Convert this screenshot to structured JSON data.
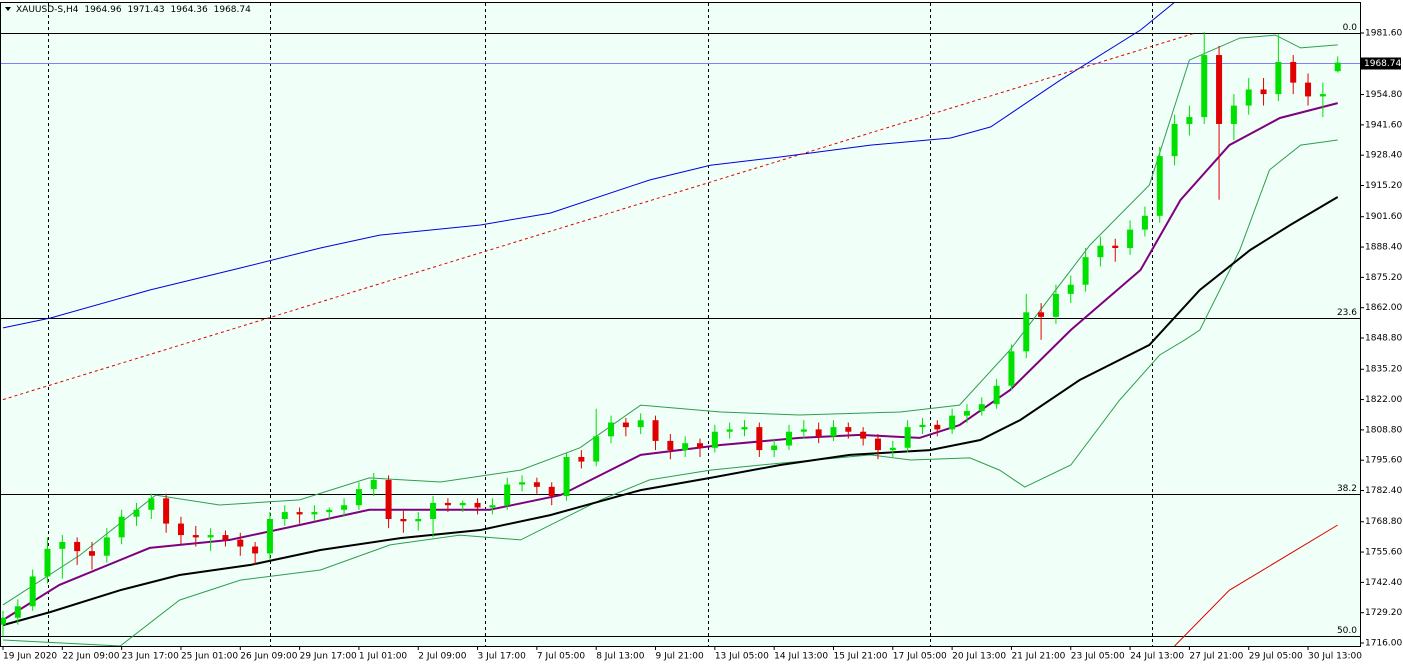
{
  "chart_data": {
    "type": "candlestick",
    "symbol": "XAUUSD-S,H4",
    "last_ohlc": [
      1964.96,
      1971.43,
      1964.36,
      1968.74
    ],
    "current_price": 1968.74,
    "current_price_color": "#8080ff",
    "up_color": "#00e000",
    "down_color": "#e00000",
    "background": "#f0fff8",
    "ylim": [
      1714.7,
      1995.1
    ],
    "yticks": [
      {
        "value": 1981.6,
        "label": "1981.60"
      },
      {
        "value": 1954.8,
        "label": "1954.80"
      },
      {
        "value": 1941.6,
        "label": "1941.60"
      },
      {
        "value": 1928.4,
        "label": "1928.40"
      },
      {
        "value": 1915.2,
        "label": "1915.20"
      },
      {
        "value": 1901.6,
        "label": "1901.60"
      },
      {
        "value": 1888.4,
        "label": "1888.40"
      },
      {
        "value": 1875.2,
        "label": "1875.20"
      },
      {
        "value": 1862.0,
        "label": "1862.00"
      },
      {
        "value": 1848.8,
        "label": "1848.80"
      },
      {
        "value": 1835.2,
        "label": "1835.20"
      },
      {
        "value": 1822.0,
        "label": "1822.00"
      },
      {
        "value": 1808.8,
        "label": "1808.80"
      },
      {
        "value": 1795.6,
        "label": "1795.60"
      },
      {
        "value": 1782.4,
        "label": "1782.40"
      },
      {
        "value": 1768.8,
        "label": "1768.80"
      },
      {
        "value": 1755.6,
        "label": "1755.60"
      },
      {
        "value": 1742.4,
        "label": "1742.40"
      },
      {
        "value": 1729.2,
        "label": "1729.20"
      },
      {
        "value": 1716.0,
        "label": "1716.00"
      }
    ],
    "xticks": [
      {
        "value": 0,
        "label": "19 Jun 2020"
      },
      {
        "value": 4,
        "label": "22 Jun 09:00"
      },
      {
        "value": 8,
        "label": "23 Jun 17:00"
      },
      {
        "value": 12,
        "label": "25 Jun 01:00"
      },
      {
        "value": 16,
        "label": "26 Jun 09:00"
      },
      {
        "value": 20,
        "label": "29 Jun 17:00"
      },
      {
        "value": 24,
        "label": "1 Jul 01:00"
      },
      {
        "value": 28,
        "label": "2 Jul 09:00"
      },
      {
        "value": 32,
        "label": "3 Jul 17:00"
      },
      {
        "value": 36,
        "label": "7 Jul 05:00"
      },
      {
        "value": 40,
        "label": "8 Jul 13:00"
      },
      {
        "value": 44,
        "label": "9 Jul 21:00"
      },
      {
        "value": 48,
        "label": "13 Jul 05:00"
      },
      {
        "value": 52,
        "label": "14 Jul 13:00"
      },
      {
        "value": 56,
        "label": "15 Jul 21:00"
      },
      {
        "value": 60,
        "label": "17 Jul 05:00"
      },
      {
        "value": 64,
        "label": "20 Jul 13:00"
      },
      {
        "value": 68,
        "label": "21 Jul 21:00"
      },
      {
        "value": 72,
        "label": "23 Jul 05:00"
      },
      {
        "value": 76,
        "label": "24 Jul 13:00"
      },
      {
        "value": 80,
        "label": "27 Jul 21:00"
      },
      {
        "value": 84,
        "label": "29 Jul 05:00"
      },
      {
        "value": 88,
        "label": "30 Jul 13:00"
      }
    ],
    "fib_levels": [
      {
        "value": 0,
        "label": "0.0",
        "price": 1981.6
      },
      {
        "value": 23.6,
        "label": "23.6",
        "price": 1857.5
      },
      {
        "value": 38.2,
        "label": "38.2",
        "price": 1781.0
      },
      {
        "value": 50,
        "label": "50.0",
        "price": 1719.2
      }
    ],
    "ohlc": [
      [
        1724,
        1730,
        1719,
        1727
      ],
      [
        1727,
        1735,
        1724,
        1732
      ],
      [
        1732,
        1748,
        1730,
        1745
      ],
      [
        1745,
        1762,
        1742,
        1757
      ],
      [
        1757,
        1763,
        1744,
        1760
      ],
      [
        1760,
        1762,
        1750,
        1756
      ],
      [
        1756,
        1760,
        1748,
        1754
      ],
      [
        1754,
        1766,
        1751,
        1762
      ],
      [
        1762,
        1774,
        1759,
        1771
      ],
      [
        1771,
        1777,
        1767,
        1774
      ],
      [
        1774,
        1781,
        1770,
        1779
      ],
      [
        1779,
        1781,
        1764,
        1768
      ],
      [
        1768,
        1771,
        1759,
        1763
      ],
      [
        1763,
        1767,
        1758,
        1762
      ],
      [
        1762,
        1766,
        1756,
        1763
      ],
      [
        1763,
        1765,
        1758,
        1761
      ],
      [
        1761,
        1764,
        1754,
        1758
      ],
      [
        1758,
        1760,
        1750,
        1755
      ],
      [
        1755,
        1773,
        1752,
        1770
      ],
      [
        1770,
        1776,
        1767,
        1773
      ],
      [
        1773,
        1775,
        1768,
        1772
      ],
      [
        1772,
        1776,
        1769,
        1773
      ],
      [
        1773,
        1775,
        1770,
        1774
      ],
      [
        1774,
        1779,
        1771,
        1776
      ],
      [
        1776,
        1786,
        1774,
        1783
      ],
      [
        1783,
        1790,
        1780,
        1787
      ],
      [
        1787,
        1789,
        1766,
        1770
      ],
      [
        1770,
        1774,
        1764,
        1769
      ],
      [
        1769,
        1773,
        1765,
        1770
      ],
      [
        1770,
        1780,
        1762,
        1777
      ],
      [
        1777,
        1779,
        1773,
        1776
      ],
      [
        1776,
        1778,
        1773,
        1777
      ],
      [
        1777,
        1779,
        1772,
        1775
      ],
      [
        1775,
        1779,
        1772,
        1776
      ],
      [
        1776,
        1788,
        1774,
        1785
      ],
      [
        1785,
        1789,
        1782,
        1786
      ],
      [
        1786,
        1788,
        1781,
        1784
      ],
      [
        1784,
        1786,
        1776,
        1780
      ],
      [
        1780,
        1799,
        1778,
        1797
      ],
      [
        1797,
        1800,
        1792,
        1795
      ],
      [
        1795,
        1818,
        1793,
        1806
      ],
      [
        1806,
        1815,
        1803,
        1812
      ],
      [
        1812,
        1814,
        1806,
        1810
      ],
      [
        1810,
        1816,
        1807,
        1813
      ],
      [
        1813,
        1815,
        1800,
        1804
      ],
      [
        1804,
        1807,
        1796,
        1800
      ],
      [
        1800,
        1806,
        1797,
        1803
      ],
      [
        1803,
        1805,
        1797,
        1801
      ],
      [
        1801,
        1811,
        1799,
        1808
      ],
      [
        1808,
        1812,
        1805,
        1809
      ],
      [
        1809,
        1813,
        1806,
        1810
      ],
      [
        1810,
        1812,
        1797,
        1800
      ],
      [
        1800,
        1805,
        1797,
        1802
      ],
      [
        1802,
        1811,
        1800,
        1808
      ],
      [
        1808,
        1813,
        1805,
        1809
      ],
      [
        1809,
        1812,
        1803,
        1806
      ],
      [
        1806,
        1813,
        1804,
        1810
      ],
      [
        1810,
        1812,
        1805,
        1808
      ],
      [
        1808,
        1810,
        1802,
        1805
      ],
      [
        1805,
        1807,
        1796,
        1800
      ],
      [
        1800,
        1804,
        1797,
        1801
      ],
      [
        1801,
        1813,
        1799,
        1810
      ],
      [
        1810,
        1814,
        1807,
        1811
      ],
      [
        1811,
        1813,
        1806,
        1809
      ],
      [
        1809,
        1818,
        1807,
        1815
      ],
      [
        1815,
        1820,
        1812,
        1817
      ],
      [
        1817,
        1823,
        1815,
        1820
      ],
      [
        1820,
        1831,
        1818,
        1828
      ],
      [
        1828,
        1846,
        1826,
        1843
      ],
      [
        1843,
        1868,
        1840,
        1860
      ],
      [
        1860,
        1864,
        1848,
        1858
      ],
      [
        1858,
        1872,
        1855,
        1868
      ],
      [
        1868,
        1876,
        1864,
        1872
      ],
      [
        1872,
        1888,
        1869,
        1884
      ],
      [
        1884,
        1893,
        1880,
        1889
      ],
      [
        1889,
        1892,
        1882,
        1888
      ],
      [
        1888,
        1900,
        1885,
        1896
      ],
      [
        1896,
        1906,
        1893,
        1902
      ],
      [
        1902,
        1932,
        1899,
        1928
      ],
      [
        1928,
        1946,
        1924,
        1942
      ],
      [
        1942,
        1950,
        1937,
        1945
      ],
      [
        1945,
        1982,
        1942,
        1972
      ],
      [
        1972,
        1976,
        1909,
        1942
      ],
      [
        1942,
        1955,
        1935,
        1950
      ],
      [
        1950,
        1962,
        1946,
        1957
      ],
      [
        1957,
        1962,
        1950,
        1955
      ],
      [
        1955,
        1981,
        1952,
        1969
      ],
      [
        1969,
        1972,
        1955,
        1960
      ],
      [
        1960,
        1964,
        1950,
        1954
      ],
      [
        1954,
        1960,
        1945,
        1955
      ],
      [
        1964.96,
        1971.43,
        1964.36,
        1968.74
      ]
    ],
    "lines": [
      {
        "color": "#0000e0",
        "width": 1,
        "x": [
          0,
          3.2,
          9.9,
          16,
          21.4,
          25.4,
          32.2,
          36.9,
          43.6,
          47.7,
          52.4,
          58.5,
          63.9,
          66.6,
          71.3,
          76.7,
          79.2
        ],
        "values": [
          1853.2,
          1857.5,
          1869.7,
          1879.3,
          1888,
          1893.6,
          1898,
          1903.2,
          1917.6,
          1924,
          1927.6,
          1932.8,
          1935.9,
          1940.7,
          1961.1,
          1982.9,
          1996
        ]
      },
      {
        "color": "#e00000",
        "width": 1,
        "dashed": true,
        "x": [
          0,
          80.4
        ],
        "values": [
          1822,
          1981.6
        ]
      },
      {
        "color": "#e00000",
        "width": 1,
        "x": [
          79,
          82.7,
          90
        ],
        "values": [
          1714.7,
          1739,
          1767.4
        ]
      },
      {
        "color": "#2e9e4e",
        "width": 1,
        "x": [
          0,
          5.2,
          10.3,
          14.6,
          20,
          24.7,
          29.5,
          34.9,
          38.9,
          43,
          48.4,
          53.7,
          60.5,
          64.5,
          67.9,
          73.3,
          77.3,
          80,
          83.4,
          85.8,
          87.5,
          90
        ],
        "values": [
          1732.6,
          1754.3,
          1780.4,
          1776.1,
          1778.3,
          1787.9,
          1786.1,
          1791.3,
          1801,
          1819.6,
          1816.6,
          1815.3,
          1816.6,
          1819.6,
          1843.6,
          1889.3,
          1915.4,
          1969.8,
          1979.4,
          1980.7,
          1975.1,
          1976.4
        ]
      },
      {
        "color": "#2e9e4e",
        "width": 1,
        "x": [
          0,
          7.9,
          11.9,
          16,
          21.4,
          26.1,
          30.8,
          34.9,
          40.3,
          43.6,
          47.7,
          51.1,
          58.5,
          61.2,
          65.2,
          67.2,
          68.9,
          72,
          75.3,
          78,
          79.7,
          80.7,
          83.4,
          85.4,
          87.5,
          90
        ],
        "values": [
          1717.3,
          1714.7,
          1734.7,
          1743.4,
          1747.8,
          1758.7,
          1763,
          1760.9,
          1778.3,
          1787,
          1791.3,
          1793.5,
          1797.9,
          1795.7,
          1796.6,
          1791.3,
          1783.9,
          1793.5,
          1821.8,
          1841.4,
          1848,
          1852.3,
          1887.1,
          1922,
          1932.8,
          1935
        ]
      },
      {
        "color": "#000000",
        "width": 2,
        "x": [
          0,
          3.2,
          7.9,
          11.9,
          16.7,
          21.4,
          26.8,
          32.2,
          36.9,
          43,
          47.7,
          52.4,
          57.1,
          62.5,
          65.9,
          68.6,
          72.6,
          77.3,
          80.7,
          84.1,
          86.8,
          90
        ],
        "values": [
          1723.8,
          1729.5,
          1739,
          1745.6,
          1750,
          1756.5,
          1761.7,
          1765.2,
          1771.7,
          1782.6,
          1787.9,
          1793.5,
          1797.9,
          1800,
          1804.4,
          1813.1,
          1830.5,
          1845.8,
          1869.7,
          1887.1,
          1898,
          1910.2
        ]
      },
      {
        "color": "#800080",
        "width": 2,
        "x": [
          0,
          3.8,
          9.9,
          15.3,
          20,
          24.7,
          32.8,
          37.6,
          43,
          48.4,
          53.7,
          57.8,
          61.8,
          64.5,
          67.9,
          72,
          76.7,
          79.4,
          82.7,
          86.1,
          90
        ],
        "values": [
          1726,
          1741.3,
          1757.4,
          1760.9,
          1767.4,
          1774,
          1774,
          1780.4,
          1797.9,
          1802.2,
          1805.3,
          1806.6,
          1805.3,
          1810.9,
          1826.1,
          1852.3,
          1878.4,
          1908.9,
          1932.8,
          1944.6,
          1951.1
        ]
      }
    ]
  }
}
